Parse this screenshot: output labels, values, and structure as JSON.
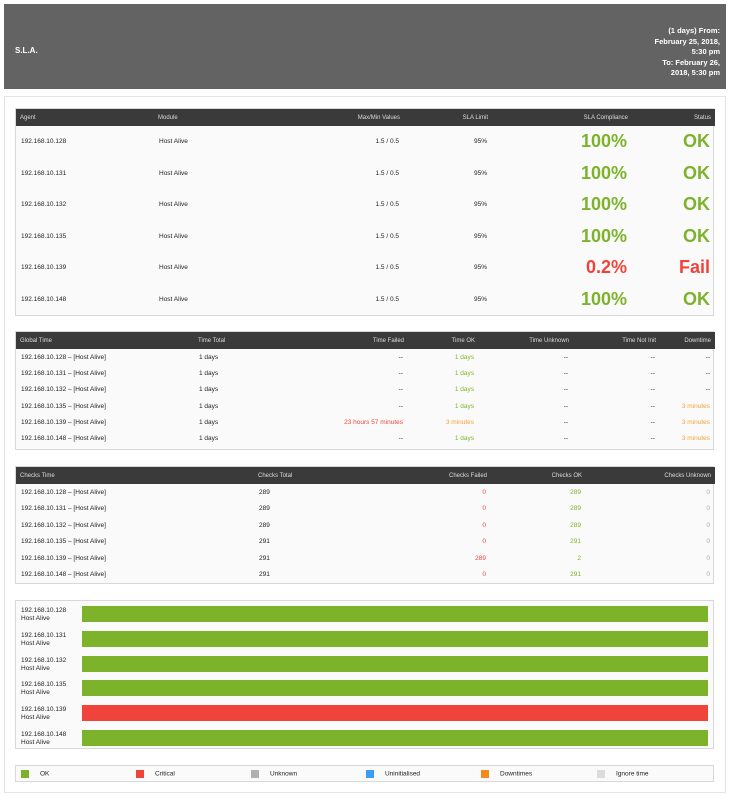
{
  "header": {
    "title": "S.L.A.",
    "range_lines": [
      "(1 days) From:",
      "February 25, 2018,",
      "5:30 pm",
      "To: February 26,",
      "2018, 5:30 pm"
    ]
  },
  "sla_table": {
    "headers": [
      "Agent",
      "Module",
      "Max/Min Values",
      "SLA Limit",
      "SLA Compliance",
      "Status"
    ],
    "rows": [
      {
        "agent": "192.168.10.128",
        "module": "Host Alive",
        "maxmin": "1.5 / 0.5",
        "limit": "95%",
        "compliance": "100%",
        "status": "OK",
        "state": "ok"
      },
      {
        "agent": "192.168.10.131",
        "module": "Host Alive",
        "maxmin": "1.5 / 0.5",
        "limit": "95%",
        "compliance": "100%",
        "status": "OK",
        "state": "ok"
      },
      {
        "agent": "192.168.10.132",
        "module": "Host Alive",
        "maxmin": "1.5 / 0.5",
        "limit": "95%",
        "compliance": "100%",
        "status": "OK",
        "state": "ok"
      },
      {
        "agent": "192.168.10.135",
        "module": "Host Alive",
        "maxmin": "1.5 / 0.5",
        "limit": "95%",
        "compliance": "100%",
        "status": "OK",
        "state": "ok"
      },
      {
        "agent": "192.168.10.139",
        "module": "Host Alive",
        "maxmin": "1.5 / 0.5",
        "limit": "95%",
        "compliance": "0.2%",
        "status": "Fail",
        "state": "fail"
      },
      {
        "agent": "192.168.10.148",
        "module": "Host Alive",
        "maxmin": "1.5 / 0.5",
        "limit": "95%",
        "compliance": "100%",
        "status": "OK",
        "state": "ok"
      }
    ]
  },
  "global_time": {
    "headers": [
      "Global Time",
      "Time Total",
      "Time Failed",
      "Time OK",
      "Time Unknown",
      "Time Not Init",
      "Downtime"
    ],
    "rows": [
      {
        "name": "192.168.10.128 – [Host Alive]",
        "total": "1 days",
        "failed": "--",
        "ok": "1 days",
        "unknown": "--",
        "notinit": "--",
        "downtime": "--"
      },
      {
        "name": "192.168.10.131 – [Host Alive]",
        "total": "1 days",
        "failed": "--",
        "ok": "1 days",
        "unknown": "--",
        "notinit": "--",
        "downtime": "--"
      },
      {
        "name": "192.168.10.132 – [Host Alive]",
        "total": "1 days",
        "failed": "--",
        "ok": "1 days",
        "unknown": "--",
        "notinit": "--",
        "downtime": "--"
      },
      {
        "name": "192.168.10.135 – [Host Alive]",
        "total": "1 days",
        "failed": "--",
        "ok": "1 days",
        "unknown": "--",
        "notinit": "--",
        "downtime": "3 minutes"
      },
      {
        "name": "192.168.10.139 – [Host Alive]",
        "total": "1 days",
        "failed": "23 hours 57 minutes",
        "ok": "3 minutes",
        "unknown": "--",
        "notinit": "--",
        "downtime": "3 minutes"
      },
      {
        "name": "192.168.10.148 – [Host Alive]",
        "total": "1 days",
        "failed": "--",
        "ok": "1 days",
        "unknown": "--",
        "notinit": "--",
        "downtime": "3 minutes"
      }
    ]
  },
  "checks_time": {
    "headers": [
      "Checks Time",
      "Checks Total",
      "Checks Failed",
      "Checks OK",
      "Checks Unknown"
    ],
    "rows": [
      {
        "name": "192.168.10.128 – [Host Alive]",
        "total": "289",
        "failed": "0",
        "ok": "289",
        "unknown": "0"
      },
      {
        "name": "192.168.10.131 – [Host Alive]",
        "total": "289",
        "failed": "0",
        "ok": "289",
        "unknown": "0"
      },
      {
        "name": "192.168.10.132 – [Host Alive]",
        "total": "289",
        "failed": "0",
        "ok": "289",
        "unknown": "0"
      },
      {
        "name": "192.168.10.135 – [Host Alive]",
        "total": "291",
        "failed": "0",
        "ok": "291",
        "unknown": "0"
      },
      {
        "name": "192.168.10.139 – [Host Alive]",
        "total": "291",
        "failed": "289",
        "ok": "2",
        "unknown": "0"
      },
      {
        "name": "192.168.10.148 – [Host Alive]",
        "total": "291",
        "failed": "0",
        "ok": "291",
        "unknown": "0"
      }
    ]
  },
  "bars": [
    {
      "agent": "192.168.10.128",
      "module": "Host Alive",
      "state": "ok"
    },
    {
      "agent": "192.168.10.131",
      "module": "Host Alive",
      "state": "ok"
    },
    {
      "agent": "192.168.10.132",
      "module": "Host Alive",
      "state": "ok"
    },
    {
      "agent": "192.168.10.135",
      "module": "Host Alive",
      "state": "ok"
    },
    {
      "agent": "192.168.10.139",
      "module": "Host Alive",
      "state": "critical"
    },
    {
      "agent": "192.168.10.148",
      "module": "Host Alive",
      "state": "ok"
    }
  ],
  "legend": [
    {
      "label": "OK",
      "color": "#7cb32a"
    },
    {
      "label": "Critical",
      "color": "#f0443b"
    },
    {
      "label": "Unknown",
      "color": "#b0b0b0"
    },
    {
      "label": "Uninitialised",
      "color": "#3d9cf5"
    },
    {
      "label": "Downtimes",
      "color": "#f58a1e"
    },
    {
      "label": "Ignore time",
      "color": "#dcdcdc"
    }
  ],
  "colors": {
    "ok": "#7cb32a",
    "critical": "#f0443b",
    "header_bg": "#636363",
    "table_header_bg": "#3a3a3a"
  }
}
